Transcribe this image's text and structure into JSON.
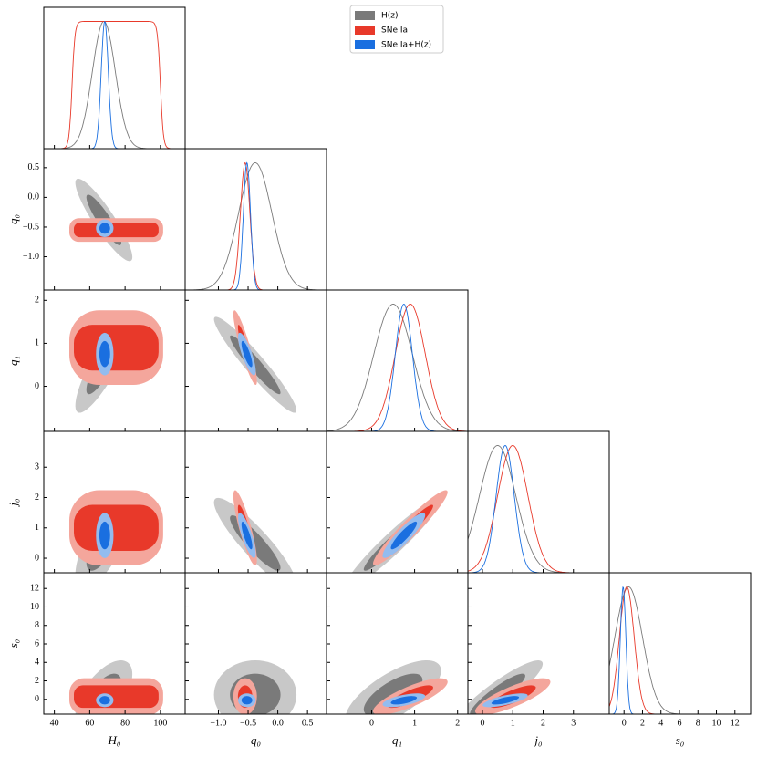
{
  "chart_data": {
    "type": "corner",
    "parameters": [
      {
        "label": "H₀",
        "lim": [
          34,
          114
        ],
        "ticks": [
          40,
          60,
          80,
          100
        ]
      },
      {
        "label": "q₀",
        "lim": [
          -1.56,
          0.82
        ],
        "ticks": [
          {
            "value": -1.0,
            "label": "−1.0"
          },
          {
            "value": -0.5,
            "label": "−0.5"
          },
          {
            "value": 0.0,
            "label": "0.0"
          },
          0.5
        ]
      },
      {
        "label": "q₁",
        "lim": [
          -1.05,
          2.24
        ],
        "ticks": [
          0,
          1,
          2
        ]
      },
      {
        "label": "j₀",
        "lim": [
          -0.48,
          4.18
        ],
        "ticks": [
          0,
          1,
          2,
          3
        ]
      },
      {
        "label": "s₀",
        "lim": [
          -1.6,
          13.7
        ],
        "ticks": [
          0,
          2,
          4,
          6,
          8,
          10,
          12
        ]
      }
    ],
    "series": [
      {
        "name": "H(z)",
        "color": "#7a7a7a",
        "light_color": "#c8c8c8",
        "estimates": [
          {
            "mean": 68,
            "sigma": 6.5
          },
          {
            "mean": -0.38,
            "sigma": 0.28
          },
          {
            "mean": 0.5,
            "sigma": 0.45
          },
          {
            "mean": 0.5,
            "sigma": 0.6
          },
          {
            "mean": 0.5,
            "sigma": 1.5
          }
        ],
        "correlations": [
          -0.9,
          0.85,
          0.7,
          0.6,
          -0.95,
          -0.9,
          0,
          0.95,
          0.7,
          0.9
        ]
      },
      {
        "name": "SNe Ia",
        "color": "#e8392a",
        "light_color": "#f4a69c",
        "estimates": [
          {
            "low": 50,
            "high": 100
          },
          {
            "mean": -0.55,
            "sigma": 0.08
          },
          {
            "mean": 0.9,
            "sigma": 0.35
          },
          {
            "mean": 1.0,
            "sigma": 0.5
          },
          {
            "mean": 0.3,
            "sigma": 0.8
          }
        ],
        "correlations": [
          0,
          0,
          0,
          0,
          -0.9,
          -0.85,
          0,
          0.95,
          0.8,
          0.8
        ]
      },
      {
        "name": "SNe Ia+H(z)",
        "color": "#1a6fe0",
        "light_color": "#93bcef",
        "estimates": [
          {
            "mean": 68.5,
            "sigma": 2
          },
          {
            "mean": -0.52,
            "sigma": 0.06
          },
          {
            "mean": 0.75,
            "sigma": 0.2
          },
          {
            "mean": 0.75,
            "sigma": 0.3
          },
          {
            "mean": -0.1,
            "sigma": 0.3
          }
        ],
        "correlations": [
          0,
          0,
          0,
          0,
          -0.8,
          -0.8,
          0,
          0.9,
          0.6,
          0.7
        ]
      }
    ]
  }
}
